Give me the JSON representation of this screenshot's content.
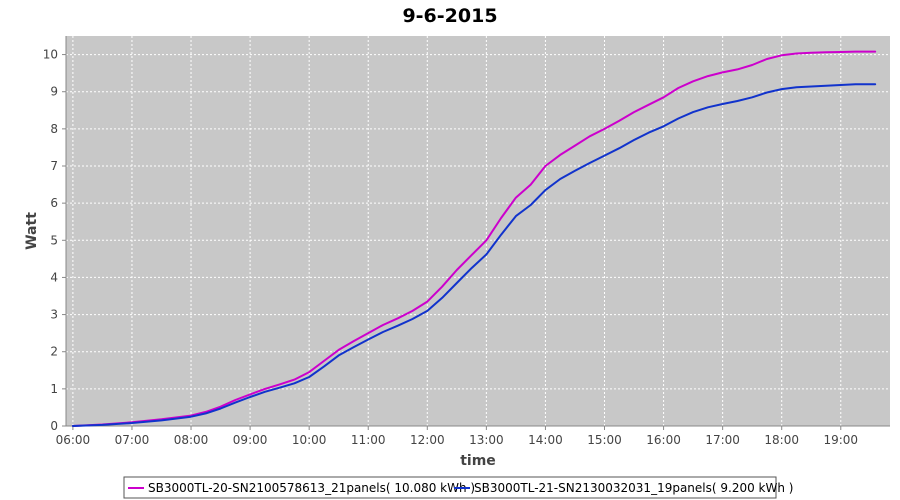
{
  "chart_data": {
    "type": "line",
    "title": "9-6-2015",
    "xlabel": "time",
    "ylabel": "Watt",
    "xlim": [
      "05:53",
      "19:50"
    ],
    "ylim": [
      0,
      10.5
    ],
    "x_ticks": [
      "06:00",
      "07:00",
      "08:00",
      "09:00",
      "10:00",
      "11:00",
      "12:00",
      "13:00",
      "14:00",
      "15:00",
      "16:00",
      "17:00",
      "18:00",
      "19:00"
    ],
    "y_ticks": [
      0,
      1,
      2,
      3,
      4,
      5,
      6,
      7,
      8,
      9,
      10
    ],
    "grid": true,
    "legend_position": "bottom-center",
    "plot_background": "#c8c8c8",
    "x": [
      "06:00",
      "06:30",
      "07:00",
      "07:30",
      "08:00",
      "08:15",
      "08:30",
      "08:45",
      "09:00",
      "09:15",
      "09:30",
      "09:45",
      "10:00",
      "10:15",
      "10:30",
      "10:45",
      "11:00",
      "11:15",
      "11:30",
      "11:45",
      "12:00",
      "12:15",
      "12:30",
      "12:45",
      "13:00",
      "13:15",
      "13:30",
      "13:45",
      "14:00",
      "14:15",
      "14:30",
      "14:45",
      "15:00",
      "15:15",
      "15:30",
      "15:45",
      "16:00",
      "16:15",
      "16:30",
      "16:45",
      "17:00",
      "17:15",
      "17:30",
      "17:45",
      "18:00",
      "18:15",
      "18:30",
      "18:45",
      "19:00",
      "19:15",
      "19:30",
      "19:35"
    ],
    "series": [
      {
        "name": "SB3000TL-20-SN2100578613_21panels( 10.080 kWh )",
        "color": "#cc00cc",
        "values": [
          0.0,
          0.04,
          0.1,
          0.18,
          0.28,
          0.38,
          0.52,
          0.7,
          0.85,
          1.0,
          1.12,
          1.25,
          1.45,
          1.75,
          2.05,
          2.28,
          2.5,
          2.72,
          2.9,
          3.1,
          3.35,
          3.75,
          4.2,
          4.6,
          5.0,
          5.6,
          6.15,
          6.5,
          7.0,
          7.3,
          7.55,
          7.8,
          8.0,
          8.22,
          8.45,
          8.65,
          8.85,
          9.1,
          9.28,
          9.42,
          9.52,
          9.6,
          9.72,
          9.88,
          9.98,
          10.03,
          10.05,
          10.06,
          10.07,
          10.08,
          10.08,
          10.08
        ]
      },
      {
        "name": "SB3000TL-21-SN2130032031_19panels( 9.200 kWh )",
        "color": "#1133cc",
        "values": [
          0.0,
          0.03,
          0.08,
          0.15,
          0.25,
          0.34,
          0.47,
          0.63,
          0.78,
          0.92,
          1.03,
          1.15,
          1.32,
          1.6,
          1.9,
          2.12,
          2.33,
          2.53,
          2.7,
          2.88,
          3.1,
          3.45,
          3.85,
          4.25,
          4.62,
          5.15,
          5.65,
          5.95,
          6.35,
          6.65,
          6.87,
          7.08,
          7.28,
          7.48,
          7.7,
          7.9,
          8.07,
          8.28,
          8.45,
          8.58,
          8.67,
          8.75,
          8.85,
          8.98,
          9.07,
          9.12,
          9.14,
          9.16,
          9.18,
          9.2,
          9.2,
          9.2
        ]
      }
    ]
  }
}
